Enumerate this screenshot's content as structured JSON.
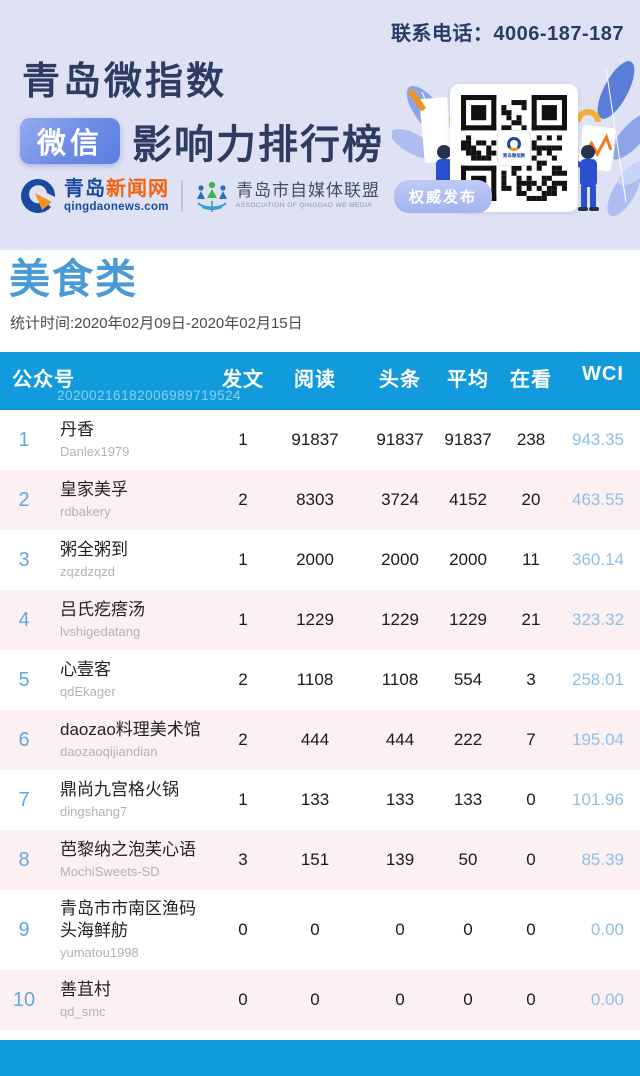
{
  "banner": {
    "phone": "联系电话：4006-187-187",
    "title_line1": "青岛微指数",
    "badge_label": "微信",
    "title_line2": "影响力排行榜",
    "news_logo": {
      "part_blue": "青岛",
      "part_orange": "新闻网",
      "domain": "qingdaonews.com"
    },
    "league_logo": {
      "name": "青岛市自媒体联盟",
      "subtitle": "ASSOCIATION OF QINGDAO WE MEDIA"
    },
    "authority_badge": "权威发布",
    "qr_caption": "青岛微指数"
  },
  "section": {
    "category_title": "美食类",
    "stats_period": "统计时间:2020年02月09日-2020年02月15日"
  },
  "table": {
    "watermark": "20200216182006989719524",
    "columns": [
      "公众号",
      "发文",
      "阅读",
      "头条",
      "平均",
      "在看",
      "WCI"
    ],
    "rows": [
      {
        "rank": "1",
        "name": "丹香",
        "account": "Danlex1979",
        "posts": "1",
        "reads": "91837",
        "headline": "91837",
        "average": "91837",
        "looking": "238",
        "wci": "943.35"
      },
      {
        "rank": "2",
        "name": "皇家美孚",
        "account": "rdbakery",
        "posts": "2",
        "reads": "8303",
        "headline": "3724",
        "average": "4152",
        "looking": "20",
        "wci": "463.55"
      },
      {
        "rank": "3",
        "name": "粥全粥到",
        "account": "zqzdzqzd",
        "posts": "1",
        "reads": "2000",
        "headline": "2000",
        "average": "2000",
        "looking": "11",
        "wci": "360.14"
      },
      {
        "rank": "4",
        "name": "吕氏疙瘩汤",
        "account": "lvshigedatang",
        "posts": "1",
        "reads": "1229",
        "headline": "1229",
        "average": "1229",
        "looking": "21",
        "wci": "323.32"
      },
      {
        "rank": "5",
        "name": "心壹客",
        "account": "qdEkager",
        "posts": "2",
        "reads": "1108",
        "headline": "1108",
        "average": "554",
        "looking": "3",
        "wci": "258.01"
      },
      {
        "rank": "6",
        "name": "daozao料理美术馆",
        "account": "daozaoqijiandian",
        "posts": "2",
        "reads": "444",
        "headline": "444",
        "average": "222",
        "looking": "7",
        "wci": "195.04"
      },
      {
        "rank": "7",
        "name": "鼎尚九宫格火锅",
        "account": "dingshang7",
        "posts": "1",
        "reads": "133",
        "headline": "133",
        "average": "133",
        "looking": "0",
        "wci": "101.96"
      },
      {
        "rank": "8",
        "name": "芭黎纳之泡芙心语",
        "account": "MochiSweets-SD",
        "posts": "3",
        "reads": "151",
        "headline": "139",
        "average": "50",
        "looking": "0",
        "wci": "85.39"
      },
      {
        "rank": "9",
        "name": "青岛市市南区渔码头海鲜舫",
        "account": "yumatou1998",
        "posts": "0",
        "reads": "0",
        "headline": "0",
        "average": "0",
        "looking": "0",
        "wci": "0.00"
      },
      {
        "rank": "10",
        "name": "善苴村",
        "account": "qd_smc",
        "posts": "0",
        "reads": "0",
        "headline": "0",
        "average": "0",
        "looking": "0",
        "wci": "0.00"
      }
    ]
  },
  "colors": {
    "banner_bg": "#dfe2f4",
    "title_navy": "#2e3c64",
    "table_blue": "#129bdc",
    "category_blue": "#4a9ad5",
    "rank_blue": "#5fa8e0",
    "wci_blue": "#8fbfe8",
    "row_alt_pink": "#fdf0f3",
    "logo_blue": "#1a4a9e",
    "logo_orange": "#f4610f",
    "illustration_blue": "#5b7fd9",
    "accent_yellow": "#f1b13a"
  }
}
